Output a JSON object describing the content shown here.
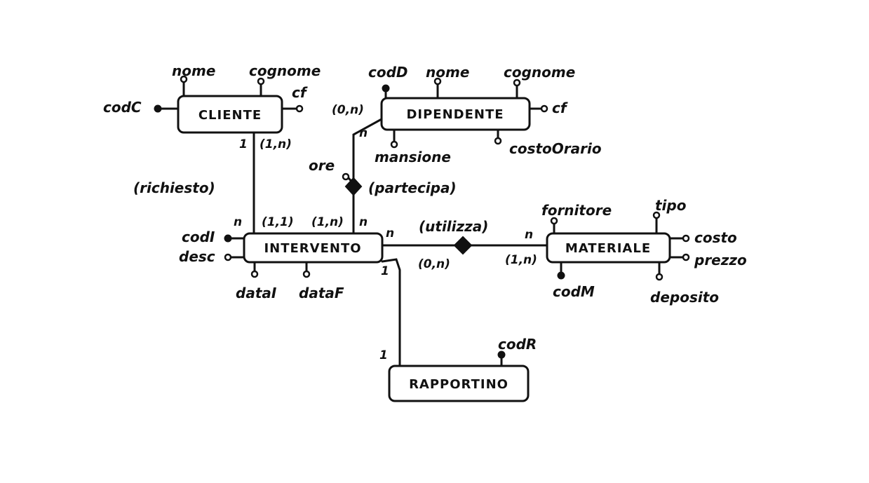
{
  "entities": {
    "cliente": "CLIENTE",
    "dipendente": "DIPENDENTE",
    "intervento": "INTERVENTO",
    "materiale": "MATERIALE",
    "rapportino": "RAPPORTINO"
  },
  "relationships": {
    "richiesto": "(richiesto)",
    "partecipa": "(partecipa)",
    "utilizza": "(utilizza)"
  },
  "attributes": {
    "cliente": {
      "nome": "nome",
      "cognome": "cognome",
      "cf": "cf",
      "codC": "codC"
    },
    "dipendente": {
      "codD": "codD",
      "nome": "nome",
      "cognome": "cognome",
      "cf": "cf",
      "mansione": "mansione",
      "costoOrario": "costoOrario"
    },
    "partecipa": {
      "ore": "ore"
    },
    "intervento": {
      "codI": "codI",
      "desc": "desc",
      "dataI": "dataI",
      "dataF": "dataF"
    },
    "materiale": {
      "fornitore": "fornitore",
      "tipo": "tipo",
      "costo": "costo",
      "prezzo": "prezzo",
      "codM": "codM",
      "deposito": "deposito"
    },
    "rapportino": {
      "codR": "codR"
    }
  },
  "cardinalities": {
    "cliente_richiesto_1": "1",
    "cliente_richiesto_range": "(1,n)",
    "intervento_richiesto_n": "n",
    "intervento_richiesto_range": "(1,1)",
    "dipendente_partecipa_range": "(0,n)",
    "dipendente_partecipa_n": "n",
    "intervento_partecipa_range": "(1,n)",
    "intervento_partecipa_n": "n",
    "intervento_utilizza_n": "n",
    "intervento_utilizza_range": "(0,n)",
    "materiale_utilizza_n": "n",
    "materiale_utilizza_range": "(1,n)",
    "intervento_rapportino_1": "1",
    "rapportino_intervento_1": "1"
  }
}
